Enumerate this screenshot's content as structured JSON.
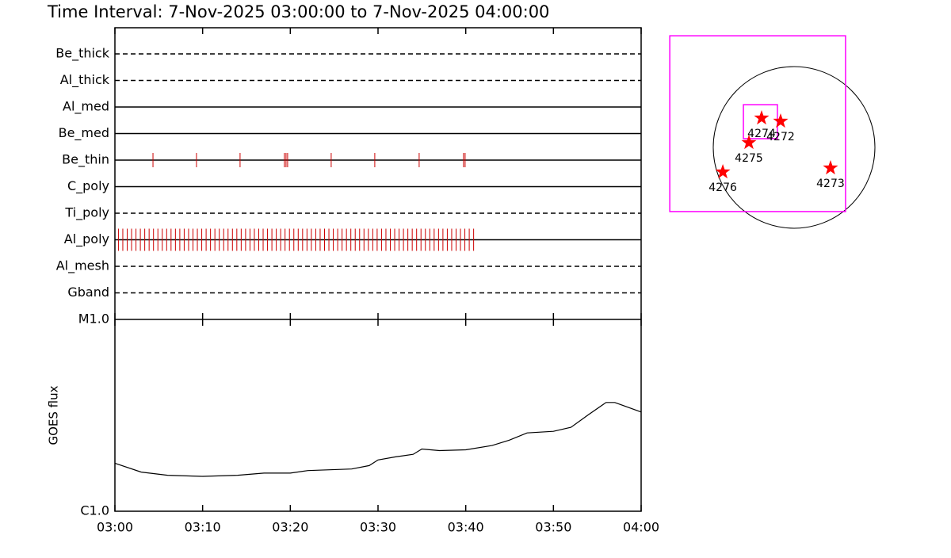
{
  "chart_data": [
    {
      "type": "timeline",
      "title": "Time Interval:  7-Nov-2025 03:00:00 to  7-Nov-2025 04:00:00",
      "xlim": [
        0,
        60
      ],
      "event_color": "#cc0000",
      "rows": [
        {
          "name": "Be_thick",
          "style": "dashed",
          "events": []
        },
        {
          "name": "Al_thick",
          "style": "dashed",
          "events": []
        },
        {
          "name": "Al_med",
          "style": "solid",
          "events": []
        },
        {
          "name": "Be_med",
          "style": "solid",
          "events": []
        },
        {
          "name": "Be_thin",
          "style": "solid",
          "events": [
            4.34,
            9.3,
            14.27,
            19.33,
            19.51,
            19.69,
            24.66,
            29.63,
            34.69,
            39.75,
            39.93
          ]
        },
        {
          "name": "C_poly",
          "style": "solid",
          "events": []
        },
        {
          "name": "Ti_poly",
          "style": "dashed",
          "events": []
        },
        {
          "name": "Al_poly",
          "style": "solid",
          "events": [
            0.4,
            0.9,
            1.4,
            1.9,
            2.4,
            2.9,
            3.4,
            3.9,
            4.4,
            4.9,
            5.4,
            5.9,
            6.4,
            6.9,
            7.4,
            7.9,
            8.4,
            8.9,
            9.4,
            9.9,
            10.4,
            10.9,
            11.4,
            11.9,
            12.4,
            12.9,
            13.4,
            13.9,
            14.4,
            14.9,
            15.4,
            15.9,
            16.4,
            16.9,
            17.4,
            17.9,
            18.4,
            18.9,
            19.4,
            19.9,
            20.4,
            20.9,
            21.4,
            21.9,
            22.4,
            22.9,
            23.4,
            23.9,
            24.4,
            24.9,
            25.4,
            25.9,
            26.4,
            26.9,
            27.4,
            27.9,
            28.4,
            28.9,
            29.4,
            29.9,
            30.4,
            30.9,
            31.4,
            31.9,
            32.4,
            32.9,
            33.4,
            33.9,
            34.4,
            34.9,
            35.4,
            35.9,
            36.4,
            36.9,
            37.4,
            37.9,
            38.4,
            38.9,
            39.4,
            39.9,
            40.4,
            40.9
          ]
        },
        {
          "name": "Al_mesh",
          "style": "dashed",
          "events": []
        },
        {
          "name": "Gband",
          "style": "dashed",
          "events": []
        }
      ]
    },
    {
      "type": "line",
      "y_label": "GOES flux",
      "log_y": true,
      "color": "#000000",
      "x": [
        0,
        3,
        6,
        10,
        14,
        17,
        20,
        22,
        27,
        29,
        30,
        32,
        34,
        35,
        37,
        40,
        43,
        45,
        47,
        50,
        52,
        54,
        56,
        57,
        60
      ],
      "values": [
        1.78e-06,
        1.6e-06,
        1.54e-06,
        1.52e-06,
        1.54e-06,
        1.58e-06,
        1.58e-06,
        1.63e-06,
        1.66e-06,
        1.73e-06,
        1.85e-06,
        1.92e-06,
        1.98e-06,
        2.11e-06,
        2.07e-06,
        2.09e-06,
        2.2e-06,
        2.35e-06,
        2.56e-06,
        2.61e-06,
        2.74e-06,
        3.19e-06,
        3.69e-06,
        3.69e-06,
        3.29e-06
      ],
      "xlim": [
        0,
        60
      ],
      "xticks": [
        {
          "value": 0,
          "label": "03:00"
        },
        {
          "value": 10,
          "label": "03:10"
        },
        {
          "value": 20,
          "label": "03:20"
        },
        {
          "value": 30,
          "label": "03:30"
        },
        {
          "value": 40,
          "label": "03:40"
        },
        {
          "value": 50,
          "label": "03:50"
        },
        {
          "value": 60,
          "label": "04:00"
        }
      ],
      "ylim": [
        1e-06,
        1e-05
      ],
      "yticks": [
        {
          "value": 1e-06,
          "label": "C1.0"
        },
        {
          "value": 1e-05,
          "label": "M1.0"
        }
      ]
    },
    {
      "type": "map",
      "solar_radius": 970,
      "marker_color": "#ff0000",
      "box_color": "#ff00ff",
      "boxes": [
        {
          "x": -437,
          "y": 285,
          "size": 2109
        },
        {
          "x": -404,
          "y": 309,
          "size": 408
        }
      ],
      "regions": [
        {
          "label": "4274",
          "x": -390,
          "y": 352
        },
        {
          "label": "4272",
          "x": -162,
          "y": 314
        },
        {
          "label": "4275",
          "x": -542,
          "y": 57
        },
        {
          "label": "4276",
          "x": -855,
          "y": -295
        },
        {
          "label": "4273",
          "x": 437,
          "y": -247
        }
      ]
    }
  ]
}
